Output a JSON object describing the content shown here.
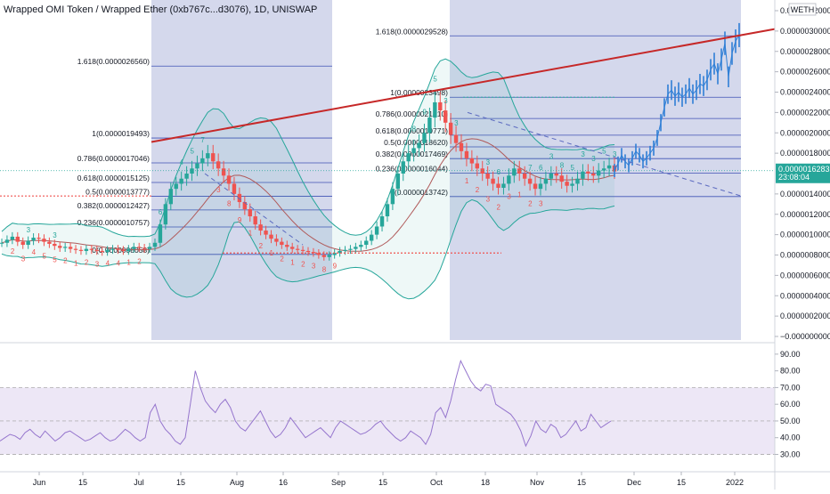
{
  "chart_data": {
    "type": "candlestick",
    "title": "Wrapped OMI Token / Wrapped Ether (0xb767c...d3076), 1D, UNISWAP",
    "currency_badge": "WETH",
    "price_tag": {
      "value": "0.0000016283",
      "countdown": "23:08:04"
    },
    "y_axis": {
      "ticks": [
        "0.0000032000",
        "0.0000030000",
        "0.0000028000",
        "0.0000026000",
        "0.0000024000",
        "0.0000022000",
        "0.0000020000",
        "0.0000018000",
        "0.0000014000",
        "0.0000012000",
        "0.0000010000",
        "0.0000008000",
        "0.0000006000",
        "0.0000004000",
        "0.0000002000",
        "−0.0000000000"
      ],
      "ylim": [
        -0.0,
        3.2e-06
      ]
    },
    "x_axis": {
      "ticks": [
        "Jun",
        "15",
        "Jul",
        "15",
        "Aug",
        "16",
        "Sep",
        "15",
        "Oct",
        "18",
        "Nov",
        "15",
        "Dec",
        "15",
        "2022"
      ]
    },
    "rsi": {
      "ticks": [
        "90.00",
        "80.00",
        "70.00",
        "60.00",
        "50.00",
        "40.00",
        "30.00"
      ],
      "ylim": [
        25,
        92
      ],
      "band": [
        30,
        70
      ],
      "values": [
        38,
        40,
        42,
        41,
        39,
        43,
        45,
        42,
        40,
        44,
        41,
        38,
        40,
        43,
        44,
        42,
        40,
        38,
        39,
        41,
        43,
        40,
        38,
        39,
        42,
        45,
        43,
        40,
        38,
        40,
        55,
        60,
        50,
        45,
        42,
        38,
        36,
        40,
        60,
        80,
        70,
        62,
        58,
        55,
        60,
        63,
        58,
        50,
        46,
        44,
        48,
        52,
        56,
        50,
        44,
        40,
        42,
        46,
        52,
        48,
        44,
        40,
        42,
        44,
        46,
        43,
        40,
        46,
        50,
        48,
        46,
        44,
        42,
        43,
        45,
        48,
        50,
        46,
        43,
        40,
        38,
        40,
        44,
        42,
        40,
        36,
        42,
        55,
        58,
        52,
        62,
        75,
        86,
        80,
        74,
        70,
        68,
        72,
        71,
        60,
        58,
        56,
        54,
        50,
        44,
        35,
        41,
        50,
        45,
        43,
        48,
        46,
        40,
        42,
        46,
        50,
        44,
        46,
        54,
        50,
        46,
        48,
        50
      ]
    },
    "series": [
      {
        "name": "",
        "type": "candles",
        "close": [
          9.2e-07,
          9.5e-07,
          9.8e-07,
          9.3e-07,
          9e-07,
          9.4e-07,
          9.7e-07,
          9.6e-07,
          9.3e-07,
          9.1e-07,
          8.9e-07,
          8.7e-07,
          8.8e-07,
          8.6e-07,
          8.5e-07,
          8.4e-07,
          8.6e-07,
          8.5e-07,
          8.4e-07,
          8.3e-07,
          8.5e-07,
          8.6e-07,
          8.5e-07,
          8.4e-07,
          8.6e-07,
          8.8e-07,
          8.7e-07,
          8.6e-07,
          8.8e-07,
          9.2e-07,
          1.1e-06,
          1.3e-06,
          1.45e-06,
          1.5e-06,
          1.55e-06,
          1.6e-06,
          1.65e-06,
          1.7e-06,
          1.75e-06,
          1.8e-06,
          1.72e-06,
          1.65e-06,
          1.58e-06,
          1.5e-06,
          1.4e-06,
          1.32e-06,
          1.25e-06,
          1.18e-06,
          1.1e-06,
          1.04e-06,
          1e-06,
          9.6e-07,
          9.3e-07,
          9e-07,
          8.8e-07,
          8.6e-07,
          8.5e-07,
          8.4e-07,
          8.3e-07,
          8.2e-07,
          8e-07,
          7.8e-07,
          8e-07,
          8.2e-07,
          8.4e-07,
          8.5e-07,
          8.6e-07,
          8.8e-07,
          9e-07,
          9.4e-07,
          1e-06,
          1.08e-06,
          1.18e-06,
          1.3e-06,
          1.45e-06,
          1.6e-06,
          1.72e-06,
          1.8e-06,
          1.85e-06,
          1.9e-06,
          2e-06,
          2.15e-06,
          2.3e-06,
          2.22e-06,
          2.1e-06,
          1.98e-06,
          1.9e-06,
          1.82e-06,
          1.75e-06,
          1.7e-06,
          1.65e-06,
          1.6e-06,
          1.55e-06,
          1.5e-06,
          1.46e-06,
          1.5e-06,
          1.58e-06,
          1.65e-06,
          1.6e-06,
          1.55e-06,
          1.5e-06,
          1.45e-06,
          1.5e-06,
          1.55e-06,
          1.6e-06,
          1.58e-06,
          1.52e-06,
          1.48e-06,
          1.5e-06,
          1.55e-06,
          1.62e-06,
          1.6e-06,
          1.58e-06,
          1.63e-06,
          1.65e-06,
          1.68e-06,
          1.62e-06
        ]
      },
      {
        "name": "",
        "type": "projection",
        "values": [
          1.63e-06,
          1.7e-06,
          1.78e-06,
          1.72e-06,
          1.68e-06,
          1.75e-06,
          1.82e-06,
          1.78e-06,
          1.72e-06,
          1.75e-06,
          1.8e-06,
          1.85e-06,
          1.95e-06,
          2.1e-06,
          2.25e-06,
          2.38e-06,
          2.42e-06,
          2.36e-06,
          2.4e-06,
          2.35e-06,
          2.38e-06,
          2.44e-06,
          2.38e-06,
          2.42e-06,
          2.48e-06,
          2.46e-06,
          2.52e-06,
          2.62e-06,
          2.68e-06,
          2.58e-06,
          2.72e-06,
          2.88e-06,
          2.55e-06,
          2.78e-06,
          2.9e-06,
          2.96e-06
        ]
      }
    ],
    "fib_left": [
      {
        "label": "1.618(0.0000026560)",
        "price": 2.656e-06
      },
      {
        "label": "1(0.0000019493)",
        "price": 1.9493e-06
      },
      {
        "label": "0.786(0.0000017046)",
        "price": 1.7046e-06
      },
      {
        "label": "0.618(0.0000015125)",
        "price": 1.5125e-06
      },
      {
        "label": "0.5(0.0000013777)",
        "price": 1.3777e-06
      },
      {
        "label": "0.382(0.0000012427)",
        "price": 1.2427e-06
      },
      {
        "label": "0.236(0.0000010757)",
        "price": 1.0757e-06
      },
      {
        "label": "0(0.0000008058)",
        "price": 8.058e-07
      }
    ],
    "fib_right": [
      {
        "label": "1.618(0.0000029528)",
        "price": 2.9528e-06
      },
      {
        "label": "1(0.0000023498)",
        "price": 2.3498e-06
      },
      {
        "label": "0.786(0.0000021410)",
        "price": 2.141e-06
      },
      {
        "label": "0.618(0.0000019771)",
        "price": 1.9771e-06
      },
      {
        "label": "0.5(0.0000018620)",
        "price": 1.862e-06
      },
      {
        "label": "0.382(0.0000017469)",
        "price": 1.7469e-06
      },
      {
        "label": "0.236(0.0000016044)",
        "price": 1.6044e-06
      },
      {
        "label": "0(0.0000013742)",
        "price": 1.3742e-06
      }
    ],
    "td_marks_green": [
      "3",
      "3",
      "6",
      "4",
      "5",
      "7",
      "8",
      "9",
      "5",
      "3",
      "3",
      "3",
      "6",
      "7",
      "6",
      "3",
      "8",
      "5",
      "3",
      "3",
      "5",
      "3"
    ],
    "td_marks_red": [
      "2",
      "3",
      "4",
      "5",
      "5",
      "2",
      "1",
      "2",
      "3",
      "4",
      "4",
      "1",
      "2",
      "3",
      "8",
      "9",
      "1",
      "2",
      "1",
      "2",
      "1",
      "2",
      "3",
      "8",
      "9",
      "1",
      "2",
      "3",
      "2",
      "3",
      "1",
      "2",
      "3"
    ],
    "colors": {
      "up": "#26a69a",
      "down": "#ef5350",
      "resistance": "#c62828",
      "fib": "#3f51b5",
      "shade": "#c5cbe6",
      "rsi": "#9575cd",
      "rsi_band": "#ede7f6",
      "bb": "#26a69a",
      "projection": "#2f7fd6",
      "price_tag": "#26a69a"
    }
  }
}
